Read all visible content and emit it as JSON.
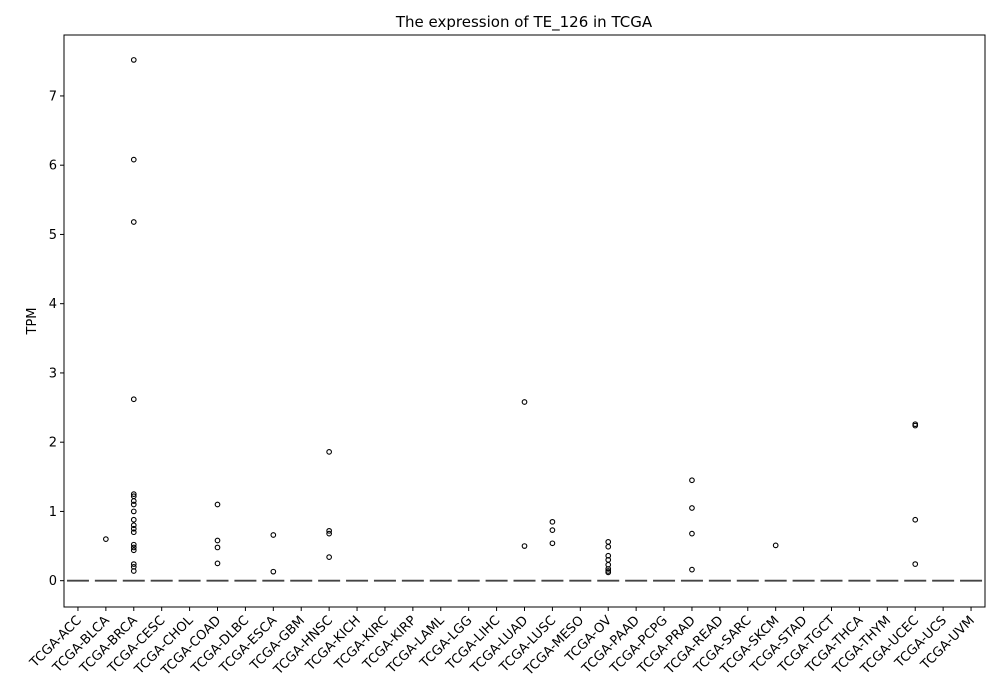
{
  "chart_data": {
    "type": "box",
    "title": "The expression of TE_126 in TCGA",
    "xlabel": "",
    "ylabel": "TPM",
    "ylim": [
      -0.38,
      7.88
    ],
    "yticks": [
      0,
      1,
      2,
      3,
      4,
      5,
      6,
      7
    ],
    "grid": false,
    "categories": [
      "TCGA-ACC",
      "TCGA-BLCA",
      "TCGA-BRCA",
      "TCGA-CESC",
      "TCGA-CHOL",
      "TCGA-COAD",
      "TCGA-DLBC",
      "TCGA-ESCA",
      "TCGA-GBM",
      "TCGA-HNSC",
      "TCGA-KICH",
      "TCGA-KIRC",
      "TCGA-KIRP",
      "TCGA-LAML",
      "TCGA-LGG",
      "TCGA-LIHC",
      "TCGA-LUAD",
      "TCGA-LUSC",
      "TCGA-MESO",
      "TCGA-OV",
      "TCGA-PAAD",
      "TCGA-PCPG",
      "TCGA-PRAD",
      "TCGA-READ",
      "TCGA-SARC",
      "TCGA-SKCM",
      "TCGA-STAD",
      "TCGA-TGCT",
      "TCGA-THCA",
      "TCGA-THYM",
      "TCGA-UCEC",
      "TCGA-UCS",
      "TCGA-UVM"
    ],
    "median": [
      0,
      0,
      0,
      0,
      0,
      0,
      0,
      0,
      0,
      0,
      0,
      0,
      0,
      0,
      0,
      0,
      0,
      0,
      0,
      0,
      0,
      0,
      0,
      0,
      0,
      0,
      0,
      0,
      0,
      0,
      0,
      0,
      0
    ],
    "outliers": [
      [],
      [
        0.6
      ],
      [
        7.52,
        6.08,
        5.18,
        2.62,
        1.25,
        1.22,
        1.15,
        1.1,
        1.0,
        0.88,
        0.8,
        0.75,
        0.7,
        0.52,
        0.48,
        0.44,
        0.24,
        0.2,
        0.14
      ],
      [],
      [],
      [
        1.1,
        0.58,
        0.48,
        0.25
      ],
      [],
      [
        0.66,
        0.13
      ],
      [],
      [
        1.86,
        0.72,
        0.68,
        0.34
      ],
      [],
      [],
      [],
      [],
      [],
      [],
      [
        2.58,
        0.5
      ],
      [
        0.85,
        0.73,
        0.54
      ],
      [],
      [
        0.56,
        0.49,
        0.36,
        0.3,
        0.23,
        0.17,
        0.14,
        0.12
      ],
      [],
      [],
      [
        1.45,
        1.05,
        0.68,
        0.16
      ],
      [],
      [],
      [
        0.51
      ],
      [],
      [],
      [],
      [],
      [
        2.26,
        2.24,
        0.88,
        0.24
      ],
      [],
      []
    ]
  }
}
